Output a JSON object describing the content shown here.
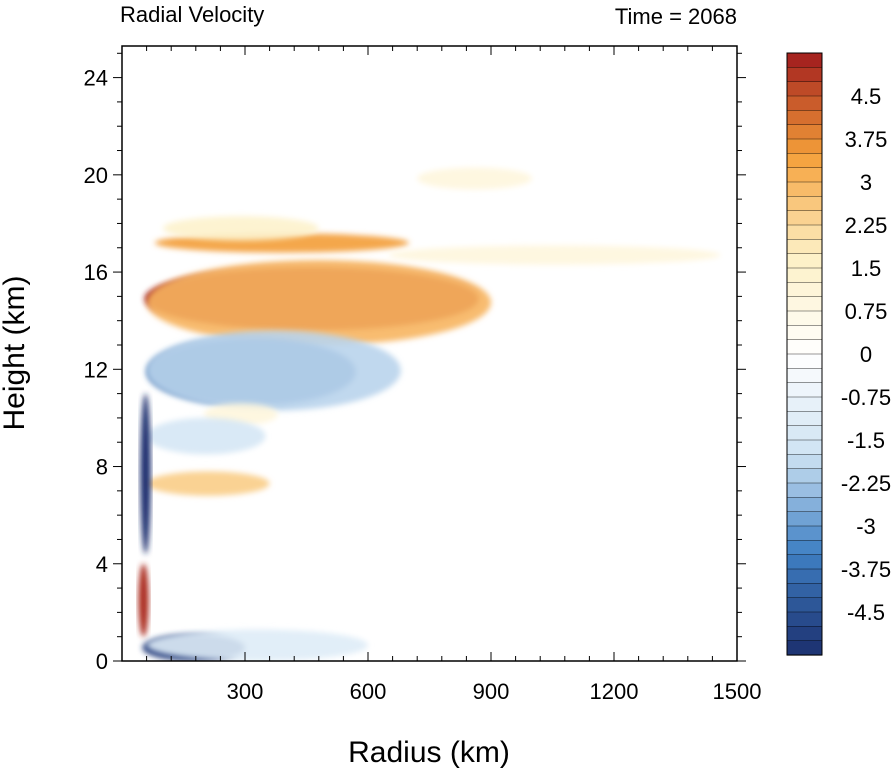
{
  "chart_data": {
    "type": "heatmap",
    "title": "Radial Velocity",
    "subtitle": "Time = 2068",
    "xlabel": "Radius (km)",
    "ylabel": "Height (km)",
    "xlim": [
      0,
      1500
    ],
    "ylim": [
      0,
      25.3
    ],
    "x_ticks": [
      "300",
      "600",
      "900",
      "1200",
      "1500"
    ],
    "y_ticks": [
      "0",
      "4",
      "8",
      "12",
      "16",
      "20",
      "24"
    ],
    "colorbar": {
      "min": -5.25,
      "max": 5.25,
      "step": 0.25,
      "labels": [
        "4.5",
        "3.75",
        "3",
        "2.25",
        "1.5",
        "0.75",
        "0",
        "-0.75",
        "-1.5",
        "-2.25",
        "-3",
        "-3.75",
        "-4.5"
      ],
      "colors": {
        "neg_max": "#1b2f6e",
        "neg_mid": "#3f80c4",
        "neg_low": "#cfe3f3",
        "zero": "#ffffff",
        "pos_low": "#fdf0c4",
        "pos_mid": "#f5a03a",
        "pos_max": "#a01b1d"
      }
    },
    "features": [
      {
        "label": "upper outflow core",
        "x": [
          55,
          870
        ],
        "y": [
          13.6,
          16.2
        ],
        "value": 5.5
      },
      {
        "label": "upper outflow fringe",
        "x": [
          60,
          900
        ],
        "y": [
          13.0,
          16.5
        ],
        "value": 3.0
      },
      {
        "label": "upper-level outflow layer",
        "x": [
          80,
          700
        ],
        "y": [
          16.8,
          17.6
        ],
        "value": 3.5
      },
      {
        "label": "upper-level warm band",
        "x": [
          100,
          480
        ],
        "y": [
          17.3,
          18.3
        ],
        "value": 1.5
      },
      {
        "label": "outer outflow band",
        "x": [
          650,
          1460
        ],
        "y": [
          16.3,
          17.1
        ],
        "value": 1.0
      },
      {
        "label": "high-level warm band",
        "x": [
          720,
          1000
        ],
        "y": [
          19.4,
          20.3
        ],
        "value": 1.0
      },
      {
        "label": "inflow below outflow",
        "x": [
          60,
          570
        ],
        "y": [
          10.5,
          13.3
        ],
        "value": -4.0
      },
      {
        "label": "inflow fringe",
        "x": [
          60,
          680
        ],
        "y": [
          10.3,
          13.6
        ],
        "value": -2.0
      },
      {
        "label": "mid-level warm band",
        "x": [
          200,
          380
        ],
        "y": [
          9.7,
          10.6
        ],
        "value": 1.0
      },
      {
        "label": "mid-level inflow",
        "x": [
          60,
          350
        ],
        "y": [
          8.5,
          10.0
        ],
        "value": -1.5
      },
      {
        "label": "lower outflow band",
        "x": [
          60,
          360
        ],
        "y": [
          6.8,
          7.8
        ],
        "value": 2.5
      },
      {
        "label": "eyewall inflow column",
        "x": [
          45,
          70
        ],
        "y": [
          4.4,
          11.0
        ],
        "value": -5.5
      },
      {
        "label": "eyewall outflow sliver",
        "x": [
          40,
          65
        ],
        "y": [
          1.0,
          4.0
        ],
        "value": 5.0
      },
      {
        "label": "boundary-layer inflow",
        "x": [
          50,
          300
        ],
        "y": [
          0.0,
          1.1
        ],
        "value": -5.0
      },
      {
        "label": "boundary-layer inflow fringe",
        "x": [
          60,
          600
        ],
        "y": [
          0.0,
          1.3
        ],
        "value": -1.2
      }
    ]
  }
}
